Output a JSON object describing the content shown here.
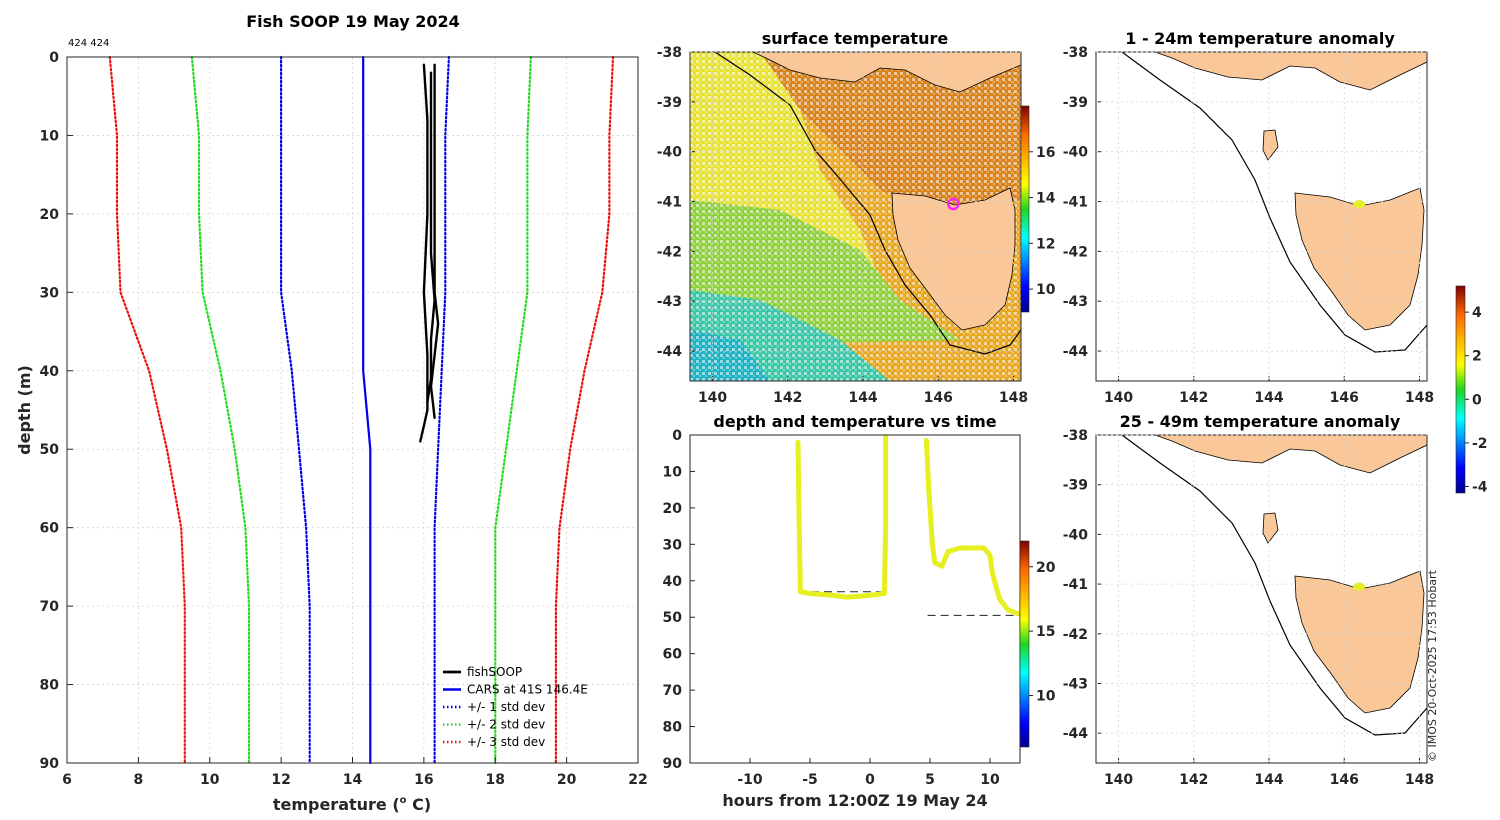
{
  "colors": {
    "fishsoop": "#000000",
    "cars": "#0000ee",
    "std1": "#0000ee",
    "std2": "#22dd22",
    "std3": "#ee1111",
    "land": "#fac898",
    "track": "#e6ef1f",
    "marker": "#ff22ff"
  },
  "footer": {
    "credit": "© IMOS 20-Oct-2025 17:53 Hobart"
  },
  "chart_data": [
    {
      "id": "profile",
      "type": "line",
      "title": "Fish SOOP 19 May 2024",
      "subtitle": "424 424",
      "xlabel": "temperature (",
      "xlabel_sup": "o",
      "xlabel_end": " C)",
      "ylabel": "depth (m)",
      "xlim": [
        6,
        22
      ],
      "ylim": [
        90,
        0
      ],
      "xticks": [
        "6",
        "8",
        "10",
        "12",
        "14",
        "16",
        "18",
        "20",
        "22"
      ],
      "yticks": [
        "0",
        "10",
        "20",
        "30",
        "40",
        "50",
        "60",
        "70",
        "80",
        "90"
      ],
      "legend_position": "bottom-right",
      "series": [
        {
          "name": "fishSOOP",
          "style": "solid-black",
          "points": [
            [
              16.0,
              1
            ],
            [
              16.1,
              8
            ],
            [
              16.1,
              20
            ],
            [
              16.0,
              30
            ],
            [
              16.1,
              38
            ],
            [
              16.1,
              43
            ],
            [
              16.1,
              45
            ],
            [
              16.0,
              47
            ],
            [
              15.9,
              49
            ]
          ]
        },
        {
          "name": "fishSOOP",
          "style": "solid-black",
          "points": [
            [
              16.3,
              1
            ],
            [
              16.3,
              10
            ],
            [
              16.3,
              20
            ],
            [
              16.3,
              30
            ],
            [
              16.4,
              34
            ],
            [
              16.3,
              38
            ],
            [
              16.2,
              42
            ],
            [
              16.3,
              46
            ]
          ]
        },
        {
          "name": "fishSOOP",
          "style": "solid-black",
          "points": [
            [
              16.2,
              2
            ],
            [
              16.2,
              15
            ],
            [
              16.2,
              25
            ],
            [
              16.3,
              31
            ],
            [
              16.2,
              36
            ],
            [
              16.2,
              41
            ],
            [
              16.1,
              44
            ]
          ]
        },
        {
          "name": "CARS at 41S 146.4E",
          "style": "solid-blue",
          "points": [
            [
              14.3,
              0
            ],
            [
              14.3,
              10
            ],
            [
              14.3,
              20
            ],
            [
              14.3,
              30
            ],
            [
              14.3,
              40
            ],
            [
              14.5,
              50
            ],
            [
              14.5,
              60
            ],
            [
              14.5,
              70
            ],
            [
              14.5,
              80
            ],
            [
              14.5,
              90
            ]
          ]
        },
        {
          "name": "+/- 1 std dev",
          "style": "dot-blue",
          "points": [
            [
              12.0,
              0
            ],
            [
              12.0,
              10
            ],
            [
              12.0,
              20
            ],
            [
              12.0,
              30
            ],
            [
              12.3,
              40
            ],
            [
              12.5,
              50
            ],
            [
              12.7,
              60
            ],
            [
              12.8,
              70
            ],
            [
              12.8,
              80
            ],
            [
              12.8,
              90
            ]
          ]
        },
        {
          "name": "+/- 1 std dev",
          "style": "dot-blue",
          "points": [
            [
              16.7,
              0
            ],
            [
              16.6,
              10
            ],
            [
              16.6,
              20
            ],
            [
              16.6,
              30
            ],
            [
              16.5,
              40
            ],
            [
              16.4,
              50
            ],
            [
              16.3,
              60
            ],
            [
              16.3,
              70
            ],
            [
              16.3,
              80
            ],
            [
              16.3,
              90
            ]
          ]
        },
        {
          "name": "+/- 2 std dev",
          "style": "dot-green",
          "points": [
            [
              9.5,
              0
            ],
            [
              9.7,
              10
            ],
            [
              9.7,
              20
            ],
            [
              9.8,
              30
            ],
            [
              10.3,
              40
            ],
            [
              10.7,
              50
            ],
            [
              11.0,
              60
            ],
            [
              11.1,
              70
            ],
            [
              11.1,
              80
            ],
            [
              11.1,
              90
            ]
          ]
        },
        {
          "name": "+/- 2 std dev",
          "style": "dot-green",
          "points": [
            [
              19.0,
              0
            ],
            [
              18.9,
              10
            ],
            [
              18.9,
              20
            ],
            [
              18.9,
              30
            ],
            [
              18.6,
              40
            ],
            [
              18.3,
              50
            ],
            [
              18.0,
              60
            ],
            [
              18.0,
              70
            ],
            [
              18.0,
              80
            ],
            [
              18.0,
              90
            ]
          ]
        },
        {
          "name": "+/- 3 std dev",
          "style": "dot-red",
          "points": [
            [
              7.2,
              0
            ],
            [
              7.4,
              10
            ],
            [
              7.4,
              20
            ],
            [
              7.5,
              30
            ],
            [
              8.3,
              40
            ],
            [
              8.8,
              50
            ],
            [
              9.2,
              60
            ],
            [
              9.3,
              70
            ],
            [
              9.3,
              80
            ],
            [
              9.3,
              90
            ]
          ]
        },
        {
          "name": "+/- 3 std dev",
          "style": "dot-red",
          "points": [
            [
              21.3,
              0
            ],
            [
              21.2,
              10
            ],
            [
              21.2,
              20
            ],
            [
              21.0,
              30
            ],
            [
              20.5,
              40
            ],
            [
              20.1,
              50
            ],
            [
              19.8,
              60
            ],
            [
              19.7,
              70
            ],
            [
              19.7,
              80
            ],
            [
              19.7,
              90
            ]
          ]
        }
      ],
      "legend": [
        {
          "label": "fishSOOP",
          "style": "solid-black"
        },
        {
          "label": "CARS at 41S 146.4E",
          "style": "solid-blue"
        },
        {
          "label": "+/- 1 std dev",
          "style": "dot-blue"
        },
        {
          "label": "+/- 2 std dev",
          "style": "dot-green"
        },
        {
          "label": "+/- 3 std dev",
          "style": "dot-red"
        }
      ]
    },
    {
      "id": "sst",
      "type": "heatmap",
      "title": "surface temperature",
      "xlim": [
        139.4,
        148.2
      ],
      "ylim": [
        -44.6,
        -38
      ],
      "xticks": [
        "140",
        "142",
        "144",
        "146",
        "148"
      ],
      "yticks": [
        "-38",
        "-39",
        "-40",
        "-41",
        "-42",
        "-43",
        "-44"
      ],
      "colorbar": {
        "range": [
          9,
          18
        ],
        "ticks": [
          "10",
          "12",
          "14",
          "16"
        ]
      },
      "marker": {
        "lon": 146.4,
        "lat": -41.05
      }
    },
    {
      "id": "depthtime",
      "type": "scatter",
      "title": "depth and temperature vs time",
      "xlabel": "hours from 12:00Z 19 May 24",
      "xlim": [
        -15,
        12.5
      ],
      "ylim": [
        90,
        0
      ],
      "xticks": [
        "-10",
        "-5",
        "0",
        "5",
        "10"
      ],
      "yticks": [
        "0",
        "10",
        "20",
        "30",
        "40",
        "50",
        "60",
        "70",
        "80",
        "90"
      ],
      "colorbar": {
        "range": [
          6,
          22
        ],
        "ticks": [
          "10",
          "15",
          "20"
        ]
      },
      "segments": [
        [
          [
            -6.0,
            2
          ],
          [
            -5.9,
            25
          ],
          [
            -5.8,
            43
          ],
          [
            -5,
            43.5
          ],
          [
            -3,
            44
          ],
          [
            -2,
            44.5
          ],
          [
            0,
            44
          ],
          [
            1.2,
            43.5
          ],
          [
            1.3,
            25
          ],
          [
            1.3,
            0.5
          ]
        ],
        [
          [
            4.7,
            1.5
          ],
          [
            4.9,
            15
          ],
          [
            5.2,
            30
          ],
          [
            5.4,
            35
          ],
          [
            6.0,
            36
          ],
          [
            6.5,
            32
          ],
          [
            7.5,
            31
          ],
          [
            8.5,
            31
          ],
          [
            9.5,
            31
          ],
          [
            10.0,
            33
          ],
          [
            10.2,
            38
          ],
          [
            10.8,
            45
          ],
          [
            11.5,
            48
          ],
          [
            12.3,
            49
          ]
        ]
      ],
      "bottom_refs": [
        {
          "x": [
            -6,
            1.2
          ],
          "y": 43
        },
        {
          "x": [
            4.8,
            12.5
          ],
          "y": 49.5
        }
      ]
    },
    {
      "id": "anom1",
      "type": "heatmap",
      "title": "1 - 24m temperature anomaly",
      "xlim": [
        139.4,
        148.2
      ],
      "ylim": [
        -44.6,
        -38
      ],
      "xticks": [
        "140",
        "142",
        "144",
        "146",
        "148"
      ],
      "yticks": [
        "-38",
        "-39",
        "-40",
        "-41",
        "-42",
        "-43",
        "-44"
      ],
      "colorbar": {
        "range": [
          -4.3,
          5.2
        ],
        "ticks": [
          "4",
          "2",
          "0",
          "-2",
          "-4"
        ]
      },
      "point": {
        "lon": 146.4,
        "lat": -41.05
      }
    },
    {
      "id": "anom2",
      "type": "heatmap",
      "title": "25 - 49m temperature anomaly",
      "xlim": [
        139.4,
        148.2
      ],
      "ylim": [
        -44.6,
        -38
      ],
      "xticks": [
        "140",
        "142",
        "144",
        "146",
        "148"
      ],
      "yticks": [
        "-38",
        "-39",
        "-40",
        "-41",
        "-42",
        "-43",
        "-44"
      ],
      "point": {
        "lon": 146.4,
        "lat": -41.05
      }
    }
  ]
}
